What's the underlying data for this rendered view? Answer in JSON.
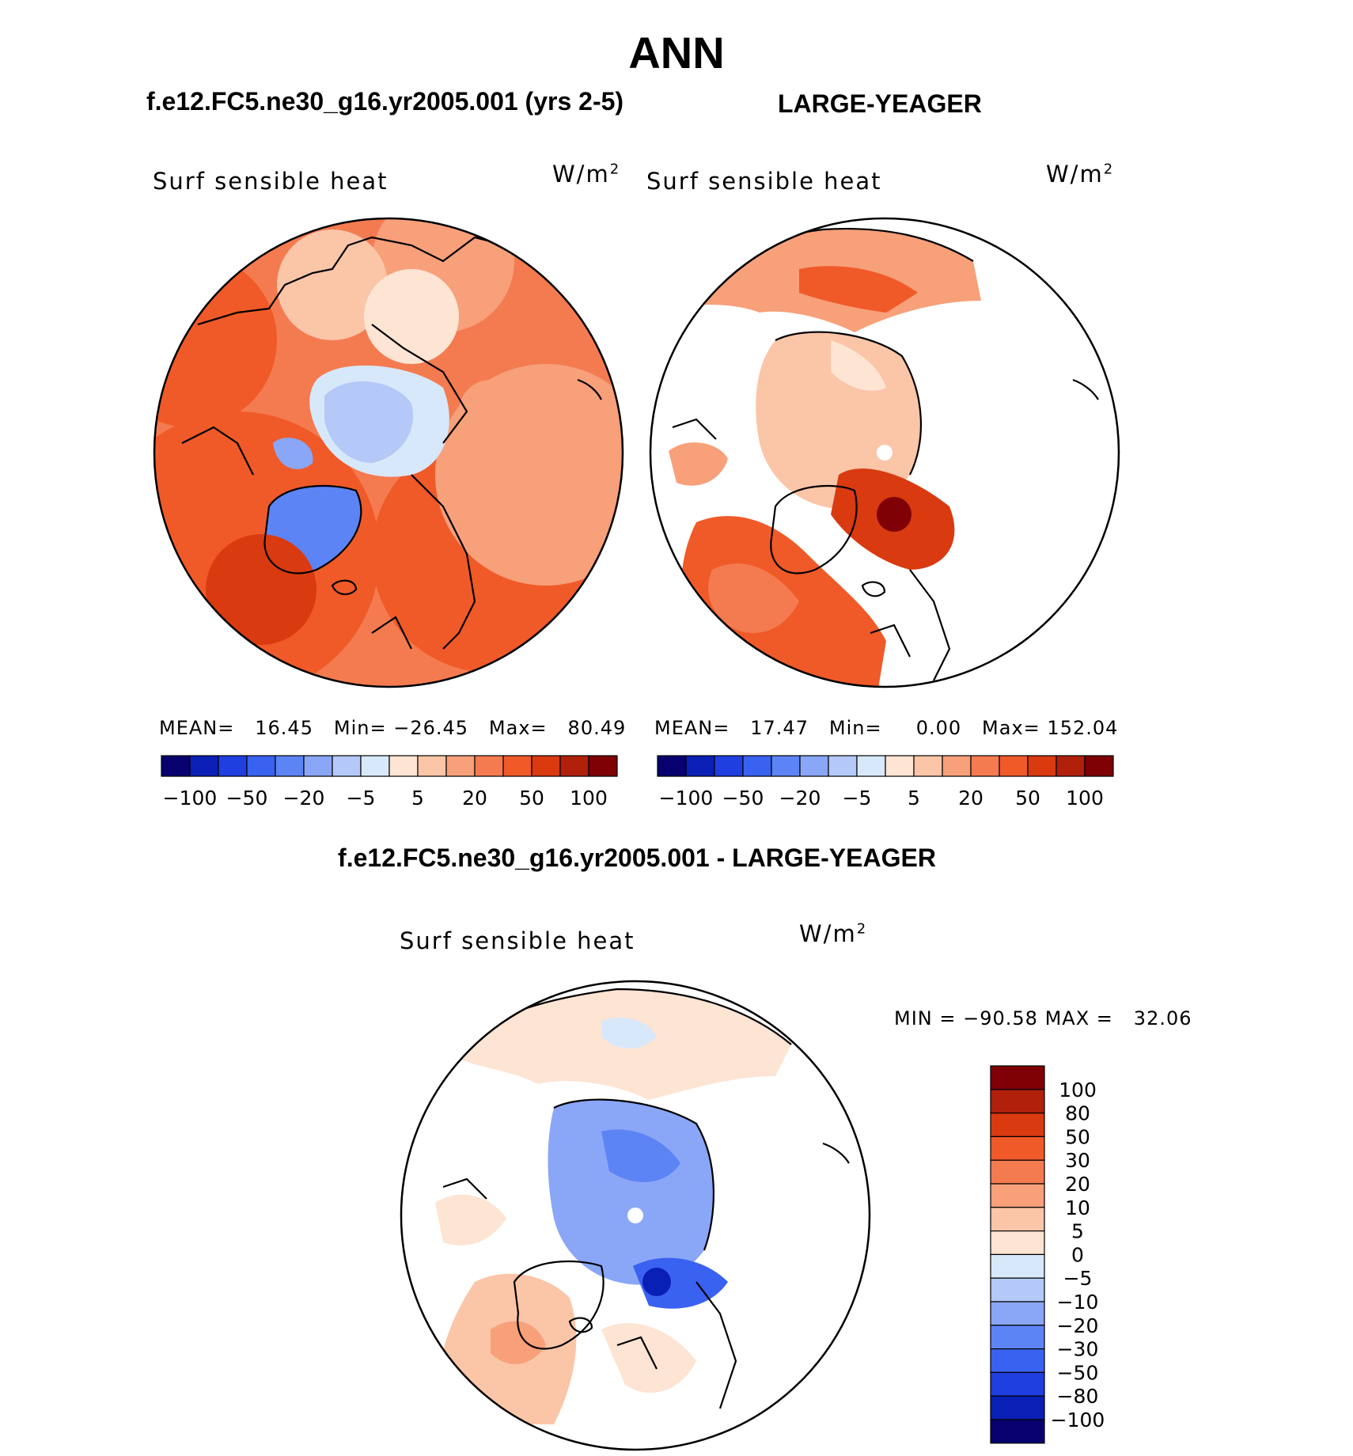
{
  "title": "ANN",
  "panel_left_title": "f.e12.FC5.ne30_g16.yr2005.001 (yrs 2-5)",
  "panel_right_title": "LARGE-YEAGER",
  "diff_title": "f.e12.FC5.ne30_g16.yr2005.001 - LARGE-YEAGER",
  "variable_label": "Surf sensible heat",
  "units_label": "W/m",
  "units_exp": "2",
  "colors": {
    "scale": [
      "#08006e",
      "#0a1fb5",
      "#1f3fe0",
      "#3a62f0",
      "#5d84f5",
      "#8aa6f7",
      "#b4c9f8",
      "#d8e8fb",
      "#fde4d3",
      "#fbc5a8",
      "#f7a07a",
      "#f47b50",
      "#f05a28",
      "#d93a10",
      "#b0200a",
      "#7f0005"
    ],
    "land_outline": "#000000"
  },
  "panels": [
    {
      "name": "model",
      "mean_label": "MEAN=",
      "mean": "16.45",
      "min_label": "Min=",
      "min": "−26.45",
      "max_label": "Max=",
      "max": "80.49"
    },
    {
      "name": "obs",
      "mean_label": "MEAN=",
      "mean": "17.47",
      "min_label": "Min=",
      "min": "0.00",
      "max_label": "Max=",
      "max": "152.04"
    }
  ],
  "diff_stats": {
    "min_label": "MIN =",
    "min": "−90.58",
    "max_label": "MAX =",
    "max": "32.06"
  },
  "chart_data": [
    {
      "type": "heatmap",
      "projection": "north-polar-stereographic",
      "title": "f.e12.FC5.ne30_g16.yr2005.001 (yrs 2-5)",
      "variable": "Surf sensible heat",
      "units": "W/m2",
      "mean": 16.45,
      "min": -26.45,
      "max": 80.49,
      "colorbar_levels": [
        "−100",
        "−50",
        "−20",
        "−5",
        "5",
        "20",
        "50",
        "100"
      ]
    },
    {
      "type": "heatmap",
      "projection": "north-polar-stereographic",
      "title": "LARGE-YEAGER",
      "variable": "Surf sensible heat",
      "units": "W/m2",
      "mean": 17.47,
      "min": 0.0,
      "max": 152.04,
      "colorbar_levels": [
        "−100",
        "−50",
        "−20",
        "−5",
        "5",
        "20",
        "50",
        "100"
      ]
    },
    {
      "type": "heatmap",
      "projection": "north-polar-stereographic",
      "title": "f.e12.FC5.ne30_g16.yr2005.001 - LARGE-YEAGER",
      "variable": "Surf sensible heat",
      "units": "W/m2",
      "min": -90.58,
      "max": 32.06,
      "colorbar_levels": [
        "100",
        "80",
        "50",
        "30",
        "20",
        "10",
        "5",
        "0",
        "−5",
        "−10",
        "−20",
        "−30",
        "−50",
        "−80",
        "−100"
      ]
    }
  ]
}
